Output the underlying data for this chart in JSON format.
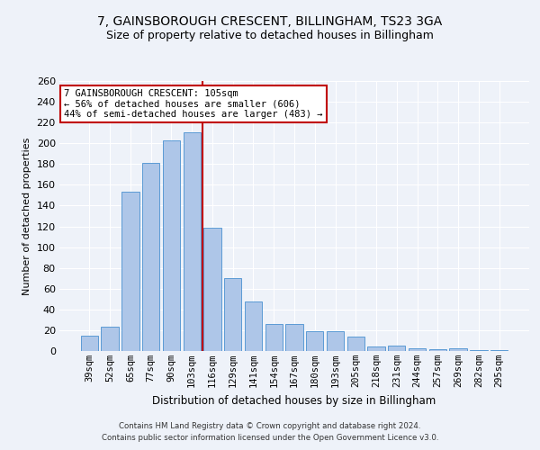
{
  "title1": "7, GAINSBOROUGH CRESCENT, BILLINGHAM, TS23 3GA",
  "title2": "Size of property relative to detached houses in Billingham",
  "xlabel": "Distribution of detached houses by size in Billingham",
  "ylabel": "Number of detached properties",
  "categories": [
    "39sqm",
    "52sqm",
    "65sqm",
    "77sqm",
    "90sqm",
    "103sqm",
    "116sqm",
    "129sqm",
    "141sqm",
    "154sqm",
    "167sqm",
    "180sqm",
    "193sqm",
    "205sqm",
    "218sqm",
    "231sqm",
    "244sqm",
    "257sqm",
    "269sqm",
    "282sqm",
    "295sqm"
  ],
  "values": [
    15,
    23,
    153,
    181,
    203,
    211,
    119,
    70,
    48,
    26,
    26,
    19,
    19,
    14,
    4,
    5,
    3,
    2,
    3,
    1,
    1
  ],
  "bar_color": "#aec6e8",
  "bar_edge_color": "#5b9bd5",
  "highlight_index": 5,
  "highlight_color": "#c00000",
  "annotation_line1": "7 GAINSBOROUGH CRESCENT: 105sqm",
  "annotation_line2": "← 56% of detached houses are smaller (606)",
  "annotation_line3": "44% of semi-detached houses are larger (483) →",
  "footer1": "Contains HM Land Registry data © Crown copyright and database right 2024.",
  "footer2": "Contains public sector information licensed under the Open Government Licence v3.0.",
  "ylim": [
    0,
    260
  ],
  "yticks": [
    0,
    20,
    40,
    60,
    80,
    100,
    120,
    140,
    160,
    180,
    200,
    220,
    240,
    260
  ],
  "bg_color": "#eef2f9",
  "grid_color": "#ffffff",
  "title1_fontsize": 10,
  "title2_fontsize": 9,
  "annotation_box_color": "#ffffff",
  "annotation_border_color": "#c00000"
}
